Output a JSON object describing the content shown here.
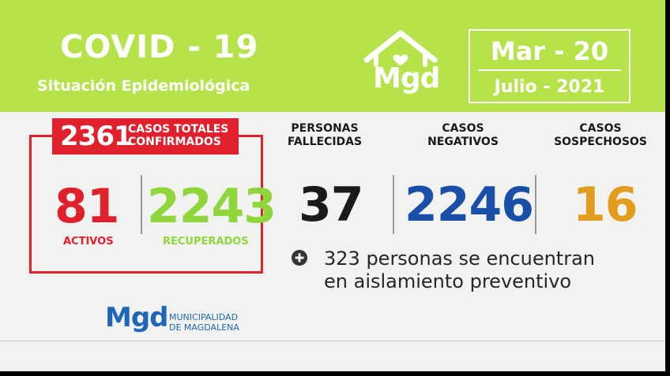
{
  "header": {
    "title": "COVID - 19",
    "subtitle": "Situación Epidemiológica",
    "logo_text": "Mgd",
    "logo_icon": "house-heart-icon",
    "date_range": "Mar - 20",
    "date_month_year": "Julio - 2021"
  },
  "totals": {
    "number": "2361",
    "label_line1": "CASOS TOTALES",
    "label_line2": "CONFIRMADOS",
    "active": {
      "value": "81",
      "label": "ACTIVOS"
    },
    "recovered": {
      "value": "2243",
      "label": "RECUPERADOS"
    }
  },
  "stats": [
    {
      "label_line1": "PERSONAS",
      "label_line2": "FALLECIDAS",
      "value": "37"
    },
    {
      "label_line1": "CASOS",
      "label_line2": "NEGATIVOS",
      "value": "2246"
    },
    {
      "label_line1": "CASOS",
      "label_line2": "SOSPECHOSOS",
      "value": "16"
    }
  ],
  "isolation": {
    "icon": "plus-circle-icon",
    "line1": "323 personas se encuentran",
    "line2": "en aislamiento preventivo"
  },
  "footer": {
    "logo_text": "Mgd",
    "name_line1": "MUNICIPALIDAD",
    "name_line2": "DE MAGDALENA"
  },
  "colors": {
    "header_bg": "#b6e349",
    "card_bg": "#f2f2f1",
    "red": "#e1202e",
    "green": "#8fd63d",
    "blue": "#1a4fa8",
    "orange": "#e39d1c",
    "black": "#1a1a1a",
    "brand_blue": "#1e67b8"
  }
}
